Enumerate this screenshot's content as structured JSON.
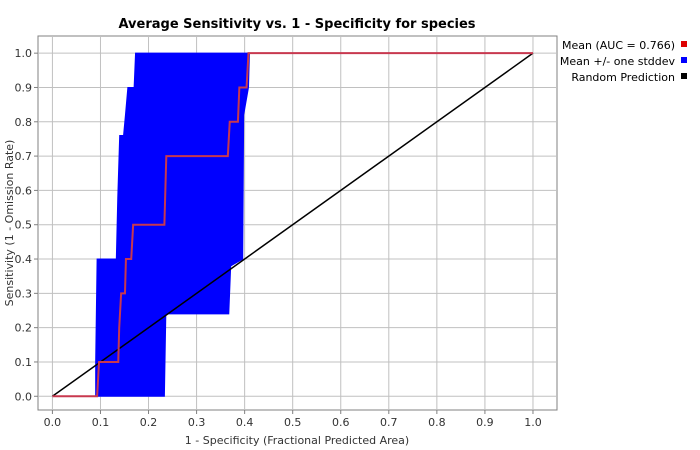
{
  "chart_data": {
    "type": "line",
    "title": "Average Sensitivity vs. 1 - Specificity for species",
    "xlabel": "1 - Specificity (Fractional Predicted Area)",
    "ylabel": "Sensitivity (1 - Omission Rate)",
    "xlim": [
      -0.03,
      1.05
    ],
    "ylim": [
      -0.04,
      1.05
    ],
    "xticks": [
      "0.0",
      "0.1",
      "0.2",
      "0.3",
      "0.4",
      "0.5",
      "0.6",
      "0.7",
      "0.8",
      "0.9",
      "1.0"
    ],
    "yticks": [
      "0.0",
      "0.1",
      "0.2",
      "0.3",
      "0.4",
      "0.5",
      "0.6",
      "0.7",
      "0.8",
      "0.9",
      "1.0"
    ],
    "grid": true,
    "legend_position": "right",
    "series": [
      {
        "name": "Mean (AUC = 0.766)",
        "color": "#dd0000",
        "points": [
          [
            0.0,
            0.0
          ],
          [
            0.093,
            0.0
          ],
          [
            0.097,
            0.1
          ],
          [
            0.137,
            0.1
          ],
          [
            0.139,
            0.2
          ],
          [
            0.143,
            0.3
          ],
          [
            0.151,
            0.3
          ],
          [
            0.153,
            0.4
          ],
          [
            0.164,
            0.4
          ],
          [
            0.168,
            0.5
          ],
          [
            0.233,
            0.5
          ],
          [
            0.237,
            0.7
          ],
          [
            0.365,
            0.7
          ],
          [
            0.369,
            0.8
          ],
          [
            0.386,
            0.8
          ],
          [
            0.389,
            0.9
          ],
          [
            0.404,
            0.9
          ],
          [
            0.408,
            1.0
          ],
          [
            1.0,
            1.0
          ]
        ]
      },
      {
        "name": "Mean +/- one stddev",
        "color": "#0000ff",
        "upper": [
          [
            0.09,
            0.1
          ],
          [
            0.093,
            0.4
          ],
          [
            0.133,
            0.4
          ],
          [
            0.136,
            0.58
          ],
          [
            0.14,
            0.76
          ],
          [
            0.148,
            0.76
          ],
          [
            0.152,
            0.82
          ],
          [
            0.157,
            0.9
          ],
          [
            0.17,
            0.9
          ],
          [
            0.173,
            1.0
          ]
        ],
        "lower": [
          [
            0.09,
            0.0
          ],
          [
            0.233,
            0.0
          ],
          [
            0.236,
            0.24
          ],
          [
            0.367,
            0.24
          ],
          [
            0.371,
            0.38
          ],
          [
            0.396,
            0.4
          ],
          [
            0.398,
            0.82
          ],
          [
            0.408,
            0.9
          ],
          [
            0.41,
            1.0
          ]
        ]
      },
      {
        "name": "Random Prediction",
        "color": "#000000",
        "points": [
          [
            0.0,
            0.0
          ],
          [
            1.0,
            1.0
          ]
        ]
      }
    ]
  }
}
